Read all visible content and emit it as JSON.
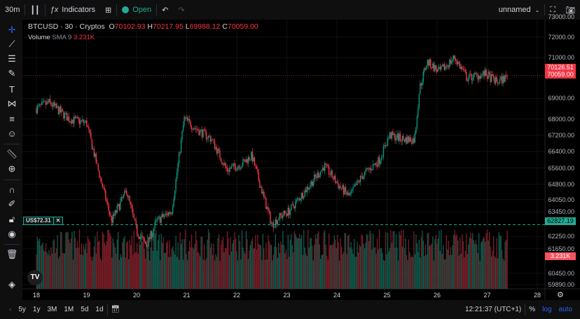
{
  "topbar": {
    "interval": "30m",
    "indicators": "Indicators",
    "market_status": "Open",
    "layout_name": "unnamed"
  },
  "legend": {
    "symbol": "BTCUSD · 30 · Cryptos",
    "o_label": "O",
    "o": "70102.93",
    "h_label": "H",
    "h": "70217.95",
    "l_label": "L",
    "l": "69988.12",
    "c_label": "C",
    "c": "70059.00",
    "volume_label": "Volume",
    "sma": "SMA 9",
    "volume_value": "3.231K"
  },
  "price_axis": {
    "labels": [
      "73000.00",
      "72000.00",
      "71000.00",
      "69000.00",
      "68000.00",
      "67200.00",
      "66400.00",
      "65600.00",
      "64800.00",
      "64050.00",
      "63450.00",
      "62250.00",
      "61650.00",
      "60450.00",
      "59890.00"
    ],
    "badges": {
      "high_marker": "70126.51",
      "last_price": "70059.00",
      "alert_line": "62827.19",
      "volume": "3.231K"
    }
  },
  "alert": {
    "label": "US$72.31",
    "close": "✕"
  },
  "time_axis": {
    "labels": [
      "18",
      "19",
      "20",
      "21",
      "22",
      "23",
      "24",
      "25",
      "26",
      "27",
      "28"
    ]
  },
  "bottombar": {
    "ranges": [
      "5y",
      "1y",
      "3M",
      "1M",
      "5d",
      "1d"
    ],
    "clock": "12:21:37 (UTC+1)",
    "percent": "%",
    "log": "log",
    "auto": "auto"
  },
  "colors": {
    "up": "#089981",
    "down": "#f23645",
    "background": "#000000",
    "accent": "#2962ff"
  },
  "chart_data": {
    "type": "candlestick",
    "symbol": "BTCUSD",
    "interval": "30",
    "price_path_approx": [
      [
        18,
        68500
      ],
      [
        18.25,
        68800
      ],
      [
        18.65,
        68000
      ],
      [
        19,
        67800
      ],
      [
        19.2,
        65800
      ],
      [
        19.5,
        63000
      ],
      [
        19.8,
        64500
      ],
      [
        20,
        62500
      ],
      [
        20.2,
        61800
      ],
      [
        20.4,
        63000
      ],
      [
        20.7,
        63500
      ],
      [
        20.95,
        68000
      ],
      [
        21.2,
        67500
      ],
      [
        21.5,
        67000
      ],
      [
        21.8,
        65500
      ],
      [
        22.1,
        65800
      ],
      [
        22.3,
        66200
      ],
      [
        22.5,
        64500
      ],
      [
        22.7,
        62800
      ],
      [
        22.85,
        63200
      ],
      [
        23.05,
        63500
      ],
      [
        23.4,
        64600
      ],
      [
        23.75,
        65700
      ],
      [
        24.05,
        64700
      ],
      [
        24.25,
        64200
      ],
      [
        24.5,
        65200
      ],
      [
        24.85,
        66000
      ],
      [
        25.05,
        67200
      ],
      [
        25.35,
        67000
      ],
      [
        25.55,
        67000
      ],
      [
        25.65,
        69500
      ],
      [
        25.8,
        70800
      ],
      [
        26.05,
        70300
      ],
      [
        26.35,
        71000
      ],
      [
        26.6,
        70000
      ],
      [
        26.95,
        70200
      ],
      [
        27.2,
        69800
      ],
      [
        27.4,
        70059
      ]
    ],
    "volume_sma9": "3.231K"
  }
}
